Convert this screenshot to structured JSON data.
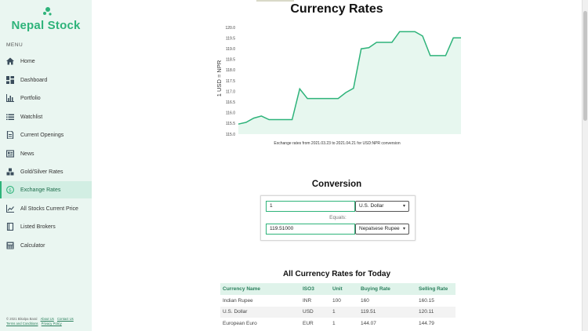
{
  "brand": {
    "name": "Nepal Stock"
  },
  "sidebar": {
    "menu_label": "MENU",
    "items": [
      {
        "label": "Home",
        "icon": "home-icon"
      },
      {
        "label": "Dashboard",
        "icon": "dashboard-icon"
      },
      {
        "label": "Portfolio",
        "icon": "chart-icon"
      },
      {
        "label": "Watchlist",
        "icon": "list-icon"
      },
      {
        "label": "Current Openings",
        "icon": "document-icon"
      },
      {
        "label": "News",
        "icon": "newspaper-icon"
      },
      {
        "label": "Gold/Silver Rates",
        "icon": "boxes-icon"
      },
      {
        "label": "Exchange Rates",
        "icon": "dollar-icon",
        "active": true
      },
      {
        "label": "All Stocks Current Price",
        "icon": "trend-icon"
      },
      {
        "label": "Listed Brokers",
        "icon": "book-icon"
      },
      {
        "label": "Calculator",
        "icon": "calculator-icon"
      }
    ],
    "footer": {
      "copyright": "© 2021 Bikalpa Baral",
      "about": "About Us",
      "contact": "Contact Us",
      "terms": "Terms and Conditions",
      "privacy": "Privacy Policy"
    }
  },
  "page": {
    "title": "Currency Rates"
  },
  "chart_data": {
    "type": "area",
    "ylabel": "1 USD = NPR",
    "xlabel": "Exchange rates from 2021.03.23 to 2021.04.21 for USD:NPR conversion",
    "ylim": [
      115.0,
      120.0
    ],
    "yticks": [
      "120.0",
      "119.5",
      "119.0",
      "118.5",
      "118.0",
      "117.5",
      "117.0",
      "116.5",
      "116.0",
      "115.5",
      "115.0"
    ],
    "grid": false,
    "values": [
      115.47,
      115.55,
      115.75,
      115.85,
      115.68,
      115.68,
      115.68,
      115.68,
      117.12,
      116.67,
      116.67,
      116.67,
      116.67,
      116.67,
      116.95,
      117.15,
      119.0,
      119.05,
      119.3,
      119.3,
      119.3,
      119.8,
      119.8,
      119.8,
      119.6,
      118.68,
      118.68,
      118.68,
      119.51,
      119.51
    ],
    "color": "#2eb37a",
    "fill": "#e7f7ef"
  },
  "conversion": {
    "title": "Conversion",
    "amount": "1",
    "from_currency": "U.S. Dollar",
    "equals": "Equals:",
    "result": "119.51000",
    "to_currency": "Nepalsese Rupee"
  },
  "rates_table": {
    "title": "All Currency Rates for Today",
    "headers": [
      "Currency Name",
      "ISO3",
      "Unit",
      "Buying Rate",
      "Selling Rate"
    ],
    "rows": [
      [
        "Indian Rupee",
        "INR",
        "100",
        "160",
        "160.15"
      ],
      [
        "U.S. Dollar",
        "USD",
        "1",
        "119.51",
        "120.11"
      ],
      [
        "European Euro",
        "EUR",
        "1",
        "144.07",
        "144.79"
      ]
    ]
  },
  "colors": {
    "accent": "#2eb37a",
    "sidebar_bg": "#eaf6f1"
  }
}
